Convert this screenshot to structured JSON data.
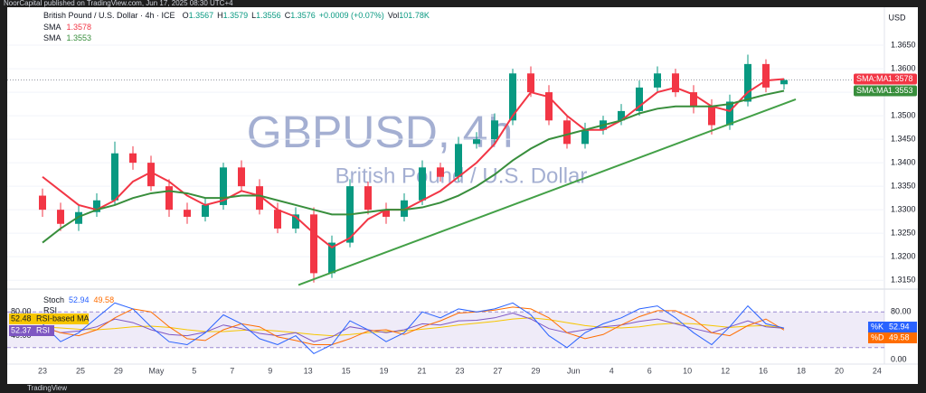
{
  "chart_data": {
    "type": "candlestick",
    "published": "NoorCapital published on TradingView.com, Jun 17, 2025 08:30 UTC+4",
    "title": "British Pound / U.S. Dollar · 4h · ICE",
    "ohlc": [
      {
        "label": "O",
        "value": 1.3567
      },
      {
        "label": "H",
        "value": 1.3579
      },
      {
        "label": "L",
        "value": 1.3556
      },
      {
        "label": "C",
        "value": 1.3576
      }
    ],
    "change": "+0.0009 (+0.07%)",
    "volume_label": "Vol",
    "volume": "101.78K",
    "watermark": "GBPUSD, 4h",
    "watermark_sub": "British Pound / U.S. Dollar",
    "currency": "USD",
    "brand": "TradingView",
    "up_color": "#089981",
    "down_color": "#f23645",
    "candles": {
      "open": [
        1.333,
        1.33,
        1.327,
        1.3295,
        1.332,
        1.342,
        1.34,
        1.335,
        1.33,
        1.3285,
        1.331,
        1.339,
        1.335,
        1.33,
        1.326,
        1.329,
        1.3165,
        1.323,
        1.335,
        1.33,
        1.3285,
        1.332,
        1.339,
        1.337,
        1.344,
        1.345,
        1.349,
        1.359,
        1.355,
        1.349,
        1.344,
        1.347,
        1.349,
        1.351,
        1.356,
        1.359,
        1.355,
        1.352,
        1.348,
        1.353,
        1.361,
        1.3567
      ],
      "high": [
        1.3345,
        1.3315,
        1.331,
        1.3335,
        1.3445,
        1.3435,
        1.3415,
        1.3365,
        1.3315,
        1.3325,
        1.34,
        1.3405,
        1.3365,
        1.3315,
        1.3305,
        1.3305,
        1.3245,
        1.3365,
        1.336,
        1.3315,
        1.3335,
        1.3405,
        1.34,
        1.3455,
        1.3465,
        1.3505,
        1.36,
        1.3605,
        1.3565,
        1.35,
        1.3485,
        1.35,
        1.3525,
        1.3575,
        1.3605,
        1.36,
        1.3565,
        1.3535,
        1.3545,
        1.363,
        1.362,
        1.3579
      ],
      "low": [
        1.3285,
        1.3255,
        1.3255,
        1.3285,
        1.331,
        1.3385,
        1.334,
        1.3285,
        1.327,
        1.3275,
        1.33,
        1.334,
        1.329,
        1.325,
        1.325,
        1.3145,
        1.3155,
        1.322,
        1.329,
        1.327,
        1.3275,
        1.331,
        1.336,
        1.336,
        1.343,
        1.344,
        1.348,
        1.354,
        1.348,
        1.343,
        1.343,
        1.346,
        1.348,
        1.35,
        1.355,
        1.354,
        1.3505,
        1.346,
        1.347,
        1.352,
        1.355,
        1.3556
      ],
      "close": [
        1.33,
        1.327,
        1.3295,
        1.332,
        1.342,
        1.34,
        1.335,
        1.33,
        1.3285,
        1.331,
        1.339,
        1.335,
        1.33,
        1.326,
        1.329,
        1.3165,
        1.323,
        1.335,
        1.33,
        1.3285,
        1.332,
        1.339,
        1.337,
        1.344,
        1.345,
        1.349,
        1.359,
        1.355,
        1.349,
        1.344,
        1.347,
        1.349,
        1.351,
        1.356,
        1.359,
        1.355,
        1.352,
        1.348,
        1.353,
        1.361,
        1.356,
        1.3576
      ]
    },
    "sma_tag": "SMA:MA",
    "sma": [
      {
        "name": "SMA",
        "color": "#f23645",
        "values": [
          1.337,
          1.334,
          1.331,
          1.33,
          1.332,
          1.336,
          1.338,
          1.336,
          1.333,
          1.331,
          1.332,
          1.334,
          1.333,
          1.33,
          1.3285,
          1.325,
          1.322,
          1.324,
          1.328,
          1.33,
          1.33,
          1.332,
          1.334,
          1.337,
          1.34,
          1.344,
          1.35,
          1.355,
          1.354,
          1.35,
          1.347,
          1.347,
          1.349,
          1.352,
          1.355,
          1.356,
          1.3545,
          1.352,
          1.351,
          1.355,
          1.3575,
          1.3578
        ]
      },
      {
        "name": "SMA",
        "color": "#388e3c",
        "values": [
          1.323,
          1.326,
          1.3285,
          1.33,
          1.331,
          1.3325,
          1.3335,
          1.334,
          1.3335,
          1.3325,
          1.3325,
          1.333,
          1.333,
          1.332,
          1.331,
          1.33,
          1.329,
          1.329,
          1.3295,
          1.33,
          1.33,
          1.3305,
          1.3315,
          1.333,
          1.335,
          1.3375,
          1.3405,
          1.343,
          1.345,
          1.346,
          1.347,
          1.348,
          1.349,
          1.3505,
          1.3515,
          1.352,
          1.352,
          1.352,
          1.3525,
          1.3535,
          1.3545,
          1.3553
        ]
      }
    ],
    "trendline": {
      "color": "#43a047",
      "start": [
        14.15,
        1.314
      ],
      "end": [
        41.65,
        1.3535
      ]
    },
    "ylim": [
      1.3135,
      1.3727
    ],
    "yticks": [
      {
        "value": 1.315,
        "label": "1.3150"
      },
      {
        "value": 1.32,
        "label": "1.3200"
      },
      {
        "value": 1.325,
        "label": "1.3250"
      },
      {
        "value": 1.33,
        "label": "1.3300"
      },
      {
        "value": 1.335,
        "label": "1.3350"
      },
      {
        "value": 1.34,
        "label": "1.3400"
      },
      {
        "value": 1.345,
        "label": "1.3450"
      },
      {
        "value": 1.35,
        "label": "1.3500"
      },
      {
        "value": 1.355,
        "label": "1.3550"
      },
      {
        "value": 1.36,
        "label": "1.3600"
      },
      {
        "value": 1.365,
        "label": "1.3650"
      }
    ],
    "x_labels": [
      "23",
      "25",
      "29",
      "May",
      "5",
      "7",
      "9",
      "13",
      "15",
      "19",
      "21",
      "23",
      "27",
      "29",
      "Jun",
      "4",
      "6",
      "10",
      "12",
      "16",
      "18",
      "20",
      "24"
    ],
    "oscillator": {
      "ylim": [
        0,
        100
      ],
      "yticks": [
        {
          "value": 0,
          "label": "0.00"
        },
        {
          "value": 80,
          "label": "80.00"
        }
      ],
      "left_yticks": [
        {
          "value": 40,
          "label": "40.00"
        },
        {
          "value": 80,
          "label": "80.00"
        }
      ],
      "band": [
        20,
        80
      ],
      "stoch_name": "Stoch",
      "rsi_name": "RSI",
      "rsi_ma_name": "RSI-based MA",
      "k_name": "%K",
      "d_name": "%D",
      "k": {
        "color": "#2962ff",
        "values": [
          60,
          30,
          45,
          70,
          95,
          85,
          55,
          30,
          25,
          45,
          75,
          60,
          35,
          25,
          40,
          10,
          25,
          65,
          50,
          30,
          45,
          80,
          70,
          85,
          80,
          85,
          95,
          75,
          40,
          20,
          45,
          60,
          70,
          85,
          90,
          70,
          45,
          25,
          55,
          90,
          60,
          52.94
        ]
      },
      "d": {
        "color": "#ff6d00",
        "values": [
          55,
          45,
          40,
          50,
          70,
          85,
          80,
          55,
          35,
          32,
          50,
          60,
          55,
          38,
          32,
          25,
          25,
          35,
          48,
          50,
          42,
          55,
          65,
          78,
          80,
          83,
          88,
          85,
          70,
          45,
          35,
          42,
          58,
          72,
          82,
          82,
          68,
          45,
          40,
          57,
          68,
          49.58
        ]
      },
      "rsi": {
        "color": "#7e57c2",
        "values": [
          55,
          45,
          48,
          55,
          68,
          62,
          50,
          42,
          40,
          46,
          58,
          52,
          44,
          40,
          45,
          30,
          38,
          55,
          50,
          45,
          50,
          60,
          58,
          65,
          66,
          70,
          78,
          68,
          52,
          45,
          50,
          55,
          58,
          64,
          68,
          60,
          52,
          45,
          55,
          65,
          55,
          52.37
        ]
      },
      "rsi_ma": {
        "color": "#f7c600",
        "values": [
          55,
          53,
          51,
          50,
          52,
          55,
          56,
          54,
          50,
          47,
          47,
          49,
          50,
          48,
          45,
          42,
          40,
          42,
          45,
          47,
          48,
          51,
          54,
          58,
          61,
          64,
          68,
          70,
          67,
          62,
          57,
          54,
          53,
          55,
          59,
          61,
          60,
          57,
          54,
          56,
          57,
          52.48
        ]
      }
    }
  }
}
